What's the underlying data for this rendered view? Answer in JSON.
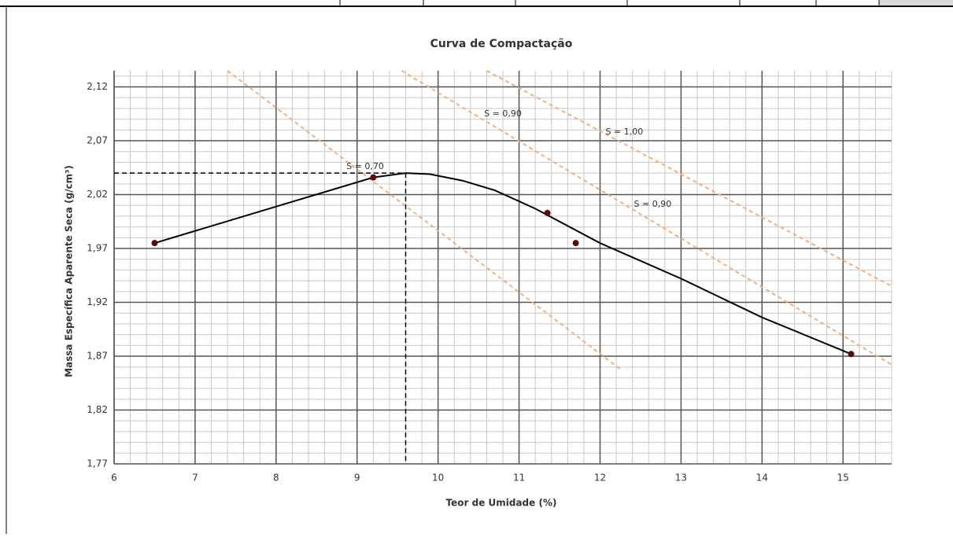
{
  "chart_data": {
    "type": "scatter",
    "title": "Curva de Compactação",
    "x_label": "Teor de Umidade (%)",
    "y_label": "Massa Específica Aparente Seca (g/cm³)",
    "xlim": [
      6,
      15.6
    ],
    "ylim": [
      1.77,
      2.135
    ],
    "xticks": [
      6,
      7,
      8,
      9,
      10,
      11,
      12,
      13,
      14,
      15
    ],
    "yticks": [
      {
        "value": 1.77,
        "label": "1,77"
      },
      {
        "value": 1.82,
        "label": "1,82"
      },
      {
        "value": 1.87,
        "label": "1,87"
      },
      {
        "value": 1.92,
        "label": "1,92"
      },
      {
        "value": 1.97,
        "label": "1,97"
      },
      {
        "value": 2.02,
        "label": "2,02"
      },
      {
        "value": 2.07,
        "label": "2,07"
      },
      {
        "value": 2.12,
        "label": "2,12"
      }
    ],
    "grid": true,
    "minor_x_step": 0.2,
    "minor_y_step": 0.01,
    "points": {
      "color": "#5a0a0a",
      "x": [
        6.5,
        9.2,
        11.35,
        11.7,
        15.1
      ],
      "values": [
        1.975,
        2.036,
        2.003,
        1.975,
        1.872
      ]
    },
    "curve": {
      "color": "#000000",
      "x": [
        6.5,
        9.2,
        9.6,
        9.9,
        10.3,
        10.7,
        11.2,
        12,
        13,
        14,
        15.1
      ],
      "values": [
        1.975,
        2.036,
        2.04,
        2.039,
        2.033,
        2.024,
        2.007,
        1.975,
        1.942,
        1.906,
        1.872
      ]
    },
    "optimum": {
      "x": 9.6,
      "y": 2.04
    },
    "saturation_lines": {
      "color": "#f0b080",
      "lines": [
        {
          "x": [
            7.4,
            12.25
          ],
          "values": [
            2.135,
            1.858
          ]
        },
        {
          "x": [
            9.55,
            15.6
          ],
          "values": [
            2.135,
            1.862
          ]
        },
        {
          "x": [
            10.6,
            15.6
          ],
          "values": [
            2.135,
            1.935
          ]
        }
      ]
    },
    "annotations": [
      {
        "text": "S = 0,70",
        "x": 9.1,
        "y": 2.046
      },
      {
        "text": "S = 0,90",
        "x": 10.8,
        "y": 2.095
      },
      {
        "text": "S = 1,00",
        "x": 12.3,
        "y": 2.078
      },
      {
        "text": "S = 0,90",
        "x": 12.65,
        "y": 2.011
      }
    ]
  }
}
